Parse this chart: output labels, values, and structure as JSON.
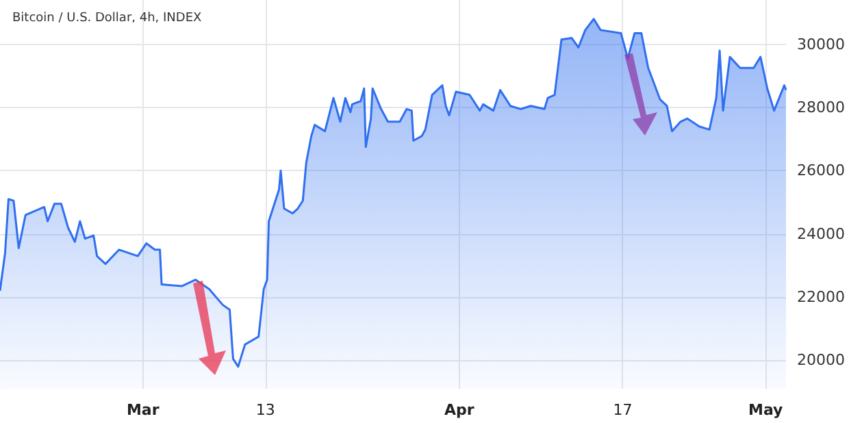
{
  "chart_data": {
    "type": "area",
    "title": "Bitcoin / U.S. Dollar, 4h, INDEX",
    "x": [
      "--02-15T00:00",
      "--02-15T12:00",
      "--02-15T20:00",
      "--02-16T08:00",
      "--02-16T20:00",
      "--02-17T12:00",
      "--02-19T08:00",
      "--02-19T16:00",
      "--02-20T08:00",
      "--02-21T00:00",
      "--02-21T16:00",
      "--02-22T08:00",
      "--02-22T20:00",
      "--02-23T08:00",
      "--02-24T04:00",
      "--02-24T12:00",
      "--02-25T08:00",
      "--02-26T16:00",
      "--02-28T12:00",
      "--03-01T08:00",
      "--03-02T04:00",
      "--03-02T16:00",
      "--03-02T20:00",
      "--03-04T20:00",
      "--03-06T04:00",
      "--03-07T12:00",
      "--03-08T20:00",
      "--03-09T12:00",
      "--03-09T20:00",
      "--03-10T08:00",
      "--03-11T00:00",
      "--03-12T08:00",
      "--03-12T20:00",
      "--03-13T04:00",
      "--03-13T08:00",
      "--03-14T08:00",
      "--03-14T12:00",
      "--03-14T20:00",
      "--03-15T16:00",
      "--03-16T04:00",
      "--03-16T16:00",
      "--03-17T00:00",
      "--03-17T12:00",
      "--03-17T20:00",
      "--03-18T20:00",
      "--03-19T16:00",
      "--03-20T08:00",
      "--03-20T20:00",
      "--03-21T08:00",
      "--03-21T12:00",
      "--03-22T08:00",
      "--03-22T16:00",
      "--03-22T20:00",
      "--03-23T08:00",
      "--03-23T12:00",
      "--03-24T08:00",
      "--03-25T00:00",
      "--03-26T04:00",
      "--03-26T20:00",
      "--03-27T08:00",
      "--03-27T12:00",
      "--03-28T08:00",
      "--03-28T16:00",
      "--03-29T08:00",
      "--03-30T08:00",
      "--03-30T16:00",
      "--03-31T00:00",
      "--03-31T16:00",
      "--04-02T00:00",
      "--04-03T00:00",
      "--04-03T08:00",
      "--04-04T08:00",
      "--04-05T00:00",
      "--04-06T00:00",
      "--04-07T00:00",
      "--04-08T00:00",
      "--04-09T08:00",
      "--04-09T16:00",
      "--04-10T08:00",
      "--04-11T00:00",
      "--04-12T00:00",
      "--04-12T16:00",
      "--04-13T08:00",
      "--04-14T04:00",
      "--04-14T20:00",
      "--04-16T20:00",
      "--04-17T12:00",
      "--04-18T04:00",
      "--04-18T20:00",
      "--04-19T12:00",
      "--04-20T16:00",
      "--04-21T08:00",
      "--04-21T20:00",
      "--04-22T16:00",
      "--04-23T08:00",
      "--04-24T12:00",
      "--04-25T12:00",
      "--04-26T04:00",
      "--04-26T12:00",
      "--04-26T20:00",
      "--04-27T12:00",
      "--04-28T12:00",
      "--04-29T20:00",
      "--04-30T12:00",
      "--05-01T04:00",
      "--05-01T20:00",
      "--05-02T20:00",
      "--05-03T00:00"
    ],
    "series": [
      {
        "color": "#2f6ff0",
        "values": [
          22200,
          23400,
          25100,
          25050,
          23550,
          24600,
          24850,
          24400,
          24950,
          24950,
          24200,
          23750,
          24400,
          23850,
          23950,
          23300,
          23050,
          23500,
          23300,
          23700,
          23500,
          23500,
          22400,
          22350,
          22550,
          22250,
          21750,
          21600,
          20050,
          19800,
          20500,
          20750,
          22250,
          22550,
          24400,
          25400,
          26000,
          24800,
          24650,
          24800,
          25050,
          26250,
          27100,
          27450,
          27250,
          28300,
          27550,
          28300,
          27850,
          28100,
          28200,
          28600,
          26750,
          27650,
          28600,
          27950,
          27550,
          27550,
          27950,
          27900,
          26950,
          27100,
          27300,
          28400,
          28700,
          28050,
          27750,
          28500,
          28400,
          27900,
          28100,
          27900,
          28550,
          28050,
          27950,
          28050,
          27950,
          28300,
          28400,
          30150,
          30200,
          29900,
          30450,
          30800,
          30450,
          30350,
          29550,
          30350,
          30350,
          29250,
          28250,
          28050,
          27250,
          27550,
          27650,
          27400,
          27300,
          28300,
          29800,
          27900,
          29600,
          29250,
          29250,
          29600,
          28600,
          27900,
          28700,
          28550
        ]
      }
    ],
    "xlim": [
      "--02-15T00:00",
      "--05-03T00:00"
    ],
    "xticks": [
      {
        "value": "--03-01",
        "label": "Mar"
      },
      {
        "value": "--03-13",
        "label": "13"
      },
      {
        "value": "--04-01",
        "label": "Apr"
      },
      {
        "value": "--04-17",
        "label": "17"
      },
      {
        "value": "--05-01",
        "label": "May"
      }
    ],
    "ylim": [
      19100,
      31400
    ],
    "yticks": [
      20000,
      22000,
      24000,
      26000,
      28000,
      30000
    ],
    "grid": true
  }
}
